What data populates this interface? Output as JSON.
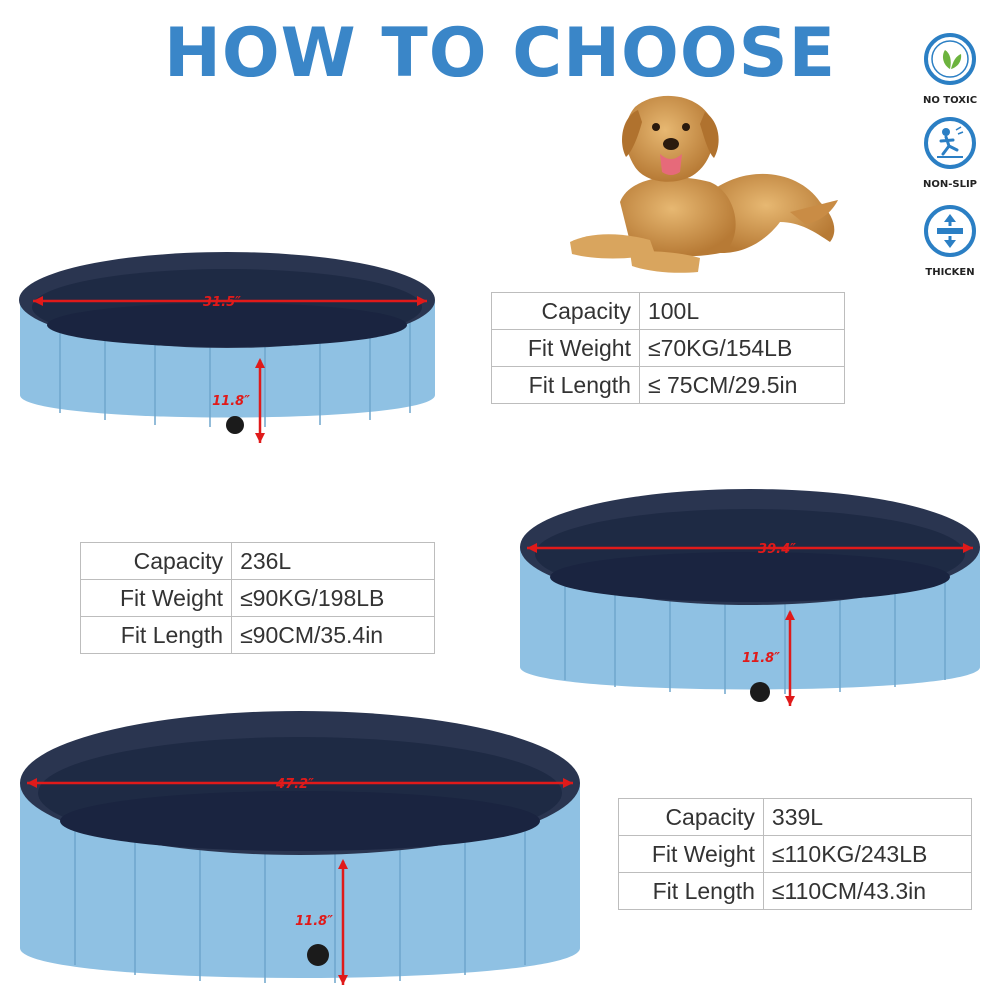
{
  "title": "HOW TO CHOOSE",
  "colors": {
    "title": "#3a86c8",
    "badge": "#2b7fc4",
    "leaf": "#6cb33e",
    "pool_outer": "#8fc1e3",
    "pool_inner": "#1e2a44",
    "dimension": "#e01a1a"
  },
  "badges": [
    {
      "label": "NO TOXIC",
      "icon": "leaf-icon"
    },
    {
      "label": "NON-SLIP",
      "icon": "slipping-person-icon"
    },
    {
      "label": "THICKEN",
      "icon": "thickness-arrows-icon"
    }
  ],
  "pools": [
    {
      "diameter": "31.5″",
      "height": "11.8″"
    },
    {
      "diameter": "39.4″",
      "height": "11.8″"
    },
    {
      "diameter": "47.2″",
      "height": "11.8″"
    }
  ],
  "specs": [
    {
      "rows": [
        {
          "key": "Capacity",
          "value": "100L"
        },
        {
          "key": "Fit Weight",
          "value": "≤70KG/154LB"
        },
        {
          "key": "Fit Length",
          "value": "≤ 75CM/29.5in"
        }
      ]
    },
    {
      "rows": [
        {
          "key": "Capacity",
          "value": "236L"
        },
        {
          "key": "Fit Weight",
          "value": "≤90KG/198LB"
        },
        {
          "key": "Fit Length",
          "value": "≤90CM/35.4in"
        }
      ]
    },
    {
      "rows": [
        {
          "key": "Capacity",
          "value": "339L"
        },
        {
          "key": "Fit Weight",
          "value": "≤110KG/243LB"
        },
        {
          "key": "Fit Length",
          "value": "≤110CM/43.3in"
        }
      ]
    }
  ]
}
